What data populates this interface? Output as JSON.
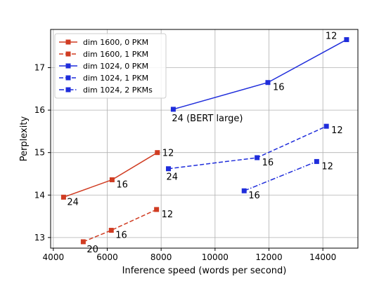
{
  "chart_data": {
    "type": "line",
    "title": "",
    "xlabel": "Inference speed (words per second)",
    "ylabel": "Perplexity",
    "xlim": [
      3900,
      15300
    ],
    "ylim": [
      12.75,
      17.9
    ],
    "xticks": [
      4000,
      6000,
      8000,
      10000,
      12000,
      14000
    ],
    "yticks": [
      13,
      14,
      15,
      16,
      17
    ],
    "grid": true,
    "legend_position": "top-left",
    "series": [
      {
        "name": "dim 1600, 0 PKM",
        "color": "#d03c22",
        "dash": "solid",
        "points": [
          {
            "x": 4380,
            "y": 13.95,
            "label": "24"
          },
          {
            "x": 6180,
            "y": 14.36,
            "label": "16"
          },
          {
            "x": 7860,
            "y": 15.0,
            "label": "12"
          }
        ]
      },
      {
        "name": "dim 1600, 1 PKM",
        "color": "#d03c22",
        "dash": "dashed",
        "points": [
          {
            "x": 5110,
            "y": 12.9,
            "label": "20"
          },
          {
            "x": 6150,
            "y": 13.17,
            "label": "16"
          },
          {
            "x": 7830,
            "y": 13.66,
            "label": "12"
          }
        ]
      },
      {
        "name": "dim 1024, 0 PKM",
        "color": "#1f2ddb",
        "dash": "solid",
        "points": [
          {
            "x": 8450,
            "y": 16.02,
            "label": "24 (BERT large)"
          },
          {
            "x": 11960,
            "y": 16.65,
            "label": "16"
          },
          {
            "x": 14880,
            "y": 17.66,
            "label": "12"
          }
        ]
      },
      {
        "name": "dim 1024, 1 PKM",
        "color": "#1f2ddb",
        "dash": "dashed",
        "points": [
          {
            "x": 8270,
            "y": 14.62,
            "label": "24"
          },
          {
            "x": 11560,
            "y": 14.88,
            "label": "16"
          },
          {
            "x": 14130,
            "y": 15.62,
            "label": "12"
          }
        ]
      },
      {
        "name": "dim 1024, 2 PKMs",
        "color": "#1f2ddb",
        "dash": "dashdot",
        "points": [
          {
            "x": 11080,
            "y": 14.1,
            "label": "16"
          },
          {
            "x": 13770,
            "y": 14.79,
            "label": "12"
          }
        ]
      }
    ]
  }
}
